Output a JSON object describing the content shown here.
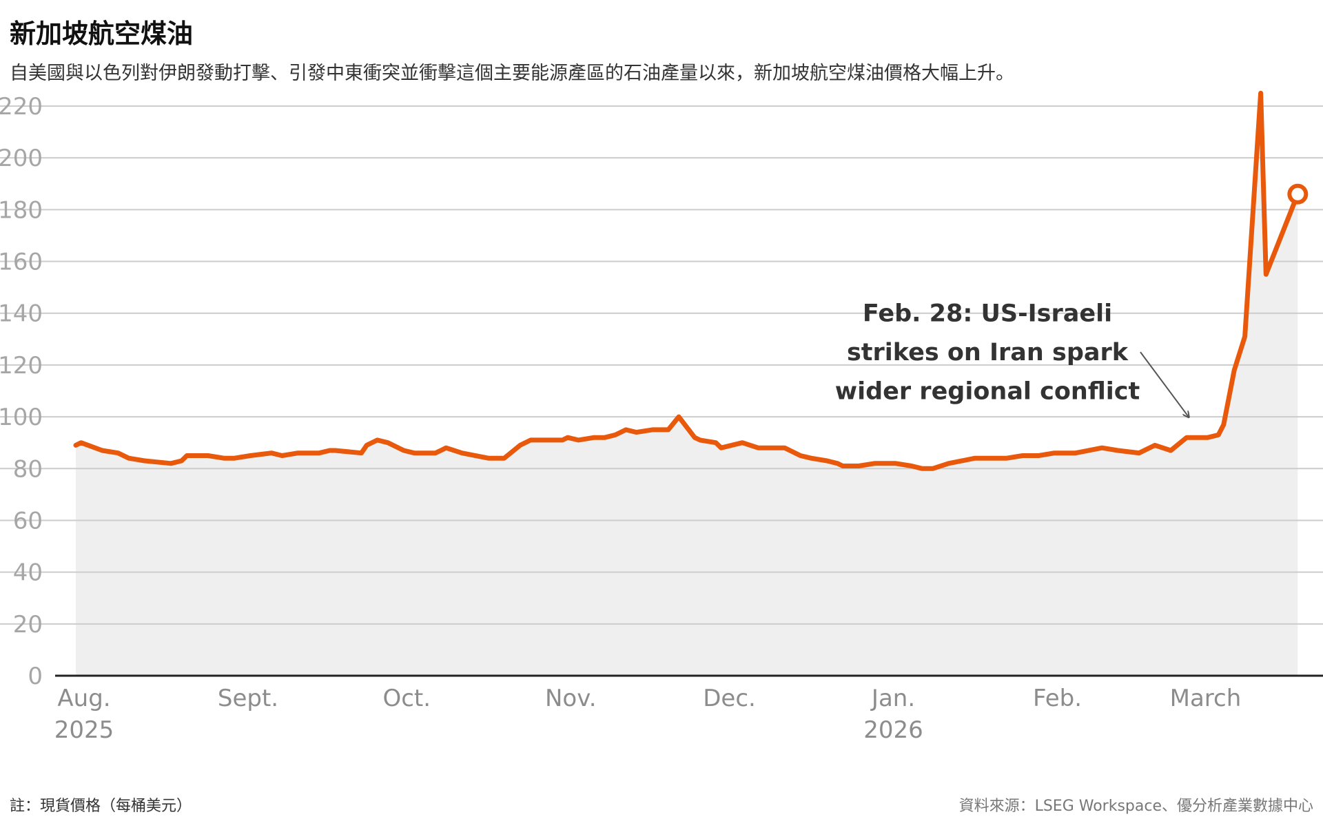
{
  "title": "新加坡航空煤油",
  "subtitle": "自美國與以色列對伊朗發動打擊、引發中東衝突並衝擊這個主要能源產區的石油產量以來，新加坡航空煤油價格大幅上升。",
  "note": "註：現貨價格（每桶美元）",
  "source": "資料來源：LSEG Workspace、優分析產業數據中心",
  "colors": {
    "line": "#e8590c",
    "area": "#efefef",
    "grid": "#cccccc",
    "axis": "#222222"
  },
  "chart_data": {
    "type": "area",
    "ylim": [
      0,
      220
    ],
    "yticks": [
      0,
      20,
      40,
      60,
      80,
      100,
      120,
      140,
      160,
      180,
      200,
      220
    ],
    "xlim": [
      "2025-08-01",
      "2026-03-21"
    ],
    "xticks": [
      {
        "date": "2025-08-01",
        "label": "Aug.",
        "year": "2025"
      },
      {
        "date": "2025-09-01",
        "label": "Sept.",
        "year": ""
      },
      {
        "date": "2025-10-01",
        "label": "Oct.",
        "year": ""
      },
      {
        "date": "2025-11-01",
        "label": "Nov.",
        "year": ""
      },
      {
        "date": "2025-12-01",
        "label": "Dec.",
        "year": ""
      },
      {
        "date": "2026-01-01",
        "label": "Jan.",
        "year": "2026"
      },
      {
        "date": "2026-02-01",
        "label": "Feb.",
        "year": ""
      },
      {
        "date": "2026-03-01",
        "label": "March",
        "year": ""
      }
    ],
    "series": [
      {
        "x": [
          "2025-08-01",
          "2025-08-02",
          "2025-08-06",
          "2025-08-09",
          "2025-08-11",
          "2025-08-14",
          "2025-08-19",
          "2025-08-21",
          "2025-08-22",
          "2025-08-26",
          "2025-08-29",
          "2025-08-31",
          "2025-09-03",
          "2025-09-07",
          "2025-09-09",
          "2025-09-12",
          "2025-09-16",
          "2025-09-18",
          "2025-09-19",
          "2025-09-24",
          "2025-09-25",
          "2025-09-27",
          "2025-09-29",
          "2025-10-02",
          "2025-10-04",
          "2025-10-08",
          "2025-10-09",
          "2025-10-10",
          "2025-10-13",
          "2025-10-18",
          "2025-10-21",
          "2025-10-24",
          "2025-10-26",
          "2025-10-29",
          "2025-11-01",
          "2025-11-02",
          "2025-11-04",
          "2025-11-07",
          "2025-11-09",
          "2025-11-11",
          "2025-11-13",
          "2025-11-15",
          "2025-11-18",
          "2025-11-20",
          "2025-11-21",
          "2025-11-23",
          "2025-11-26",
          "2025-11-27",
          "2025-11-30",
          "2025-12-01",
          "2025-12-05",
          "2025-12-08",
          "2025-12-13",
          "2025-12-16",
          "2025-12-18",
          "2025-12-21",
          "2025-12-23",
          "2025-12-24",
          "2025-12-27",
          "2025-12-30",
          "2026-01-03",
          "2026-01-06",
          "2026-01-08",
          "2026-01-10",
          "2026-01-13",
          "2026-01-18",
          "2026-01-24",
          "2026-01-27",
          "2026-01-30",
          "2026-02-02",
          "2026-02-06",
          "2026-02-11",
          "2026-02-14",
          "2026-02-18",
          "2026-02-21",
          "2026-02-24",
          "2026-02-27",
          "2026-03-01",
          "2026-03-03",
          "2026-03-05",
          "2026-03-06",
          "2026-03-08",
          "2026-03-10",
          "2026-03-13",
          "2026-03-14"
        ],
        "values": [
          89,
          90,
          87,
          86,
          84,
          83,
          82,
          83,
          85,
          85,
          84,
          84,
          85,
          86,
          85,
          86,
          86,
          87,
          87,
          86,
          89,
          91,
          90,
          87,
          86,
          86,
          87,
          88,
          86,
          84,
          84,
          89,
          91,
          91,
          91,
          92,
          91,
          92,
          92,
          93,
          95,
          94,
          95,
          95,
          95,
          100,
          92,
          91,
          90,
          88,
          90,
          88,
          88,
          85,
          84,
          83,
          82,
          81,
          81,
          82,
          82,
          81,
          80,
          80,
          82,
          84,
          84,
          85,
          85,
          86,
          86,
          88,
          87,
          86,
          89,
          87,
          92,
          92,
          92,
          93,
          97,
          118,
          131,
          225,
          155
        ]
      }
    ],
    "last_point": {
      "date": "2026-03-20",
      "value": 186
    },
    "annotation": {
      "lines": [
        "Feb. 28: US-Israeli",
        "strikes on Iran spark",
        "wider regional conflict"
      ],
      "date": "2026-02-28"
    }
  }
}
